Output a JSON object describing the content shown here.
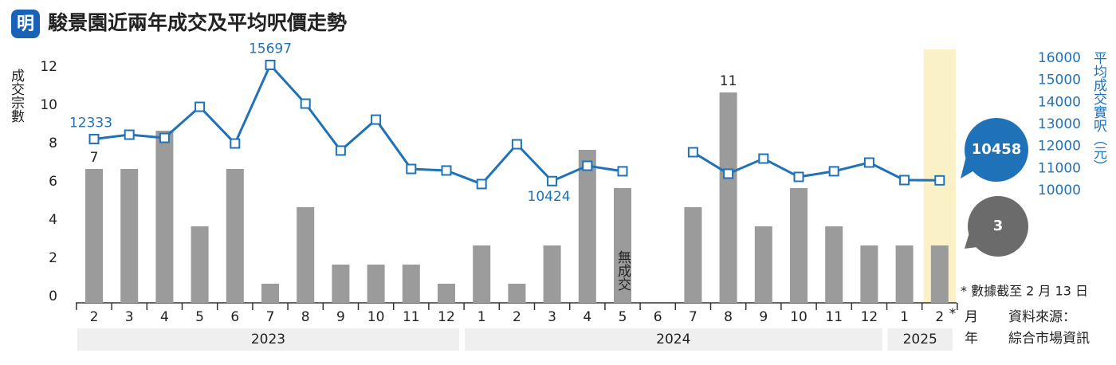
{
  "logo": "明",
  "chart_data": {
    "type": "bar-line",
    "title": "駿景園近兩年成交及平均呎價走勢",
    "categories": [
      "2",
      "3",
      "4",
      "5",
      "6",
      "7",
      "8",
      "9",
      "10",
      "11",
      "12",
      "1",
      "2",
      "3",
      "4",
      "5",
      "6",
      "7",
      "8",
      "9",
      "10",
      "11",
      "12",
      "1",
      "2"
    ],
    "category_note": "*",
    "x_groups": [
      {
        "label": "2023",
        "start": 0,
        "end": 10
      },
      {
        "label": "2024",
        "start": 11,
        "end": 22
      },
      {
        "label": "2025",
        "start": 23,
        "end": 24
      }
    ],
    "highlight_index": 24,
    "x_unit_labels": [
      "月",
      "年"
    ],
    "source": [
      "資料來源：",
      "綜合市場資訊"
    ],
    "note": "* 數據截至 2 月 13 日",
    "annotations": [
      {
        "text": "無成交",
        "index": 15
      }
    ],
    "series": [
      {
        "name": "成交宗數",
        "type": "bar",
        "color": "#9b9b9b",
        "values": [
          7,
          7,
          9,
          4,
          7,
          1,
          5,
          2,
          2,
          2,
          1,
          3,
          1,
          3,
          8,
          6,
          0,
          5,
          11,
          4,
          6,
          4,
          3,
          3,
          3
        ],
        "value_labels": [
          "7",
          null,
          null,
          null,
          null,
          null,
          null,
          null,
          null,
          null,
          null,
          null,
          null,
          null,
          null,
          null,
          null,
          null,
          "11",
          null,
          null,
          null,
          null,
          null,
          "3"
        ]
      },
      {
        "name": "平均成交實呎（元）",
        "type": "line",
        "axis": "y2",
        "color": "#1f72b8",
        "values": [
          12333,
          12530,
          12385,
          13795,
          12130,
          15697,
          13940,
          11810,
          13215,
          10975,
          10905,
          10290,
          12095,
          10424,
          11120,
          10870,
          null,
          11735,
          10760,
          11445,
          10615,
          10870,
          11265,
          10470,
          10458
        ],
        "value_labels": [
          "12333",
          null,
          null,
          null,
          null,
          "15697",
          null,
          null,
          null,
          null,
          null,
          null,
          null,
          "10424",
          null,
          null,
          null,
          null,
          null,
          null,
          null,
          null,
          null,
          null,
          "10458"
        ]
      }
    ],
    "ylim": [
      0,
      13.25
    ],
    "yticks": [
      0,
      2,
      4,
      6,
      8,
      10,
      12
    ],
    "y2lim": [
      4900,
      16400
    ],
    "y2ticks": [
      10000,
      11000,
      12000,
      13000,
      14000,
      15000,
      16000
    ]
  }
}
